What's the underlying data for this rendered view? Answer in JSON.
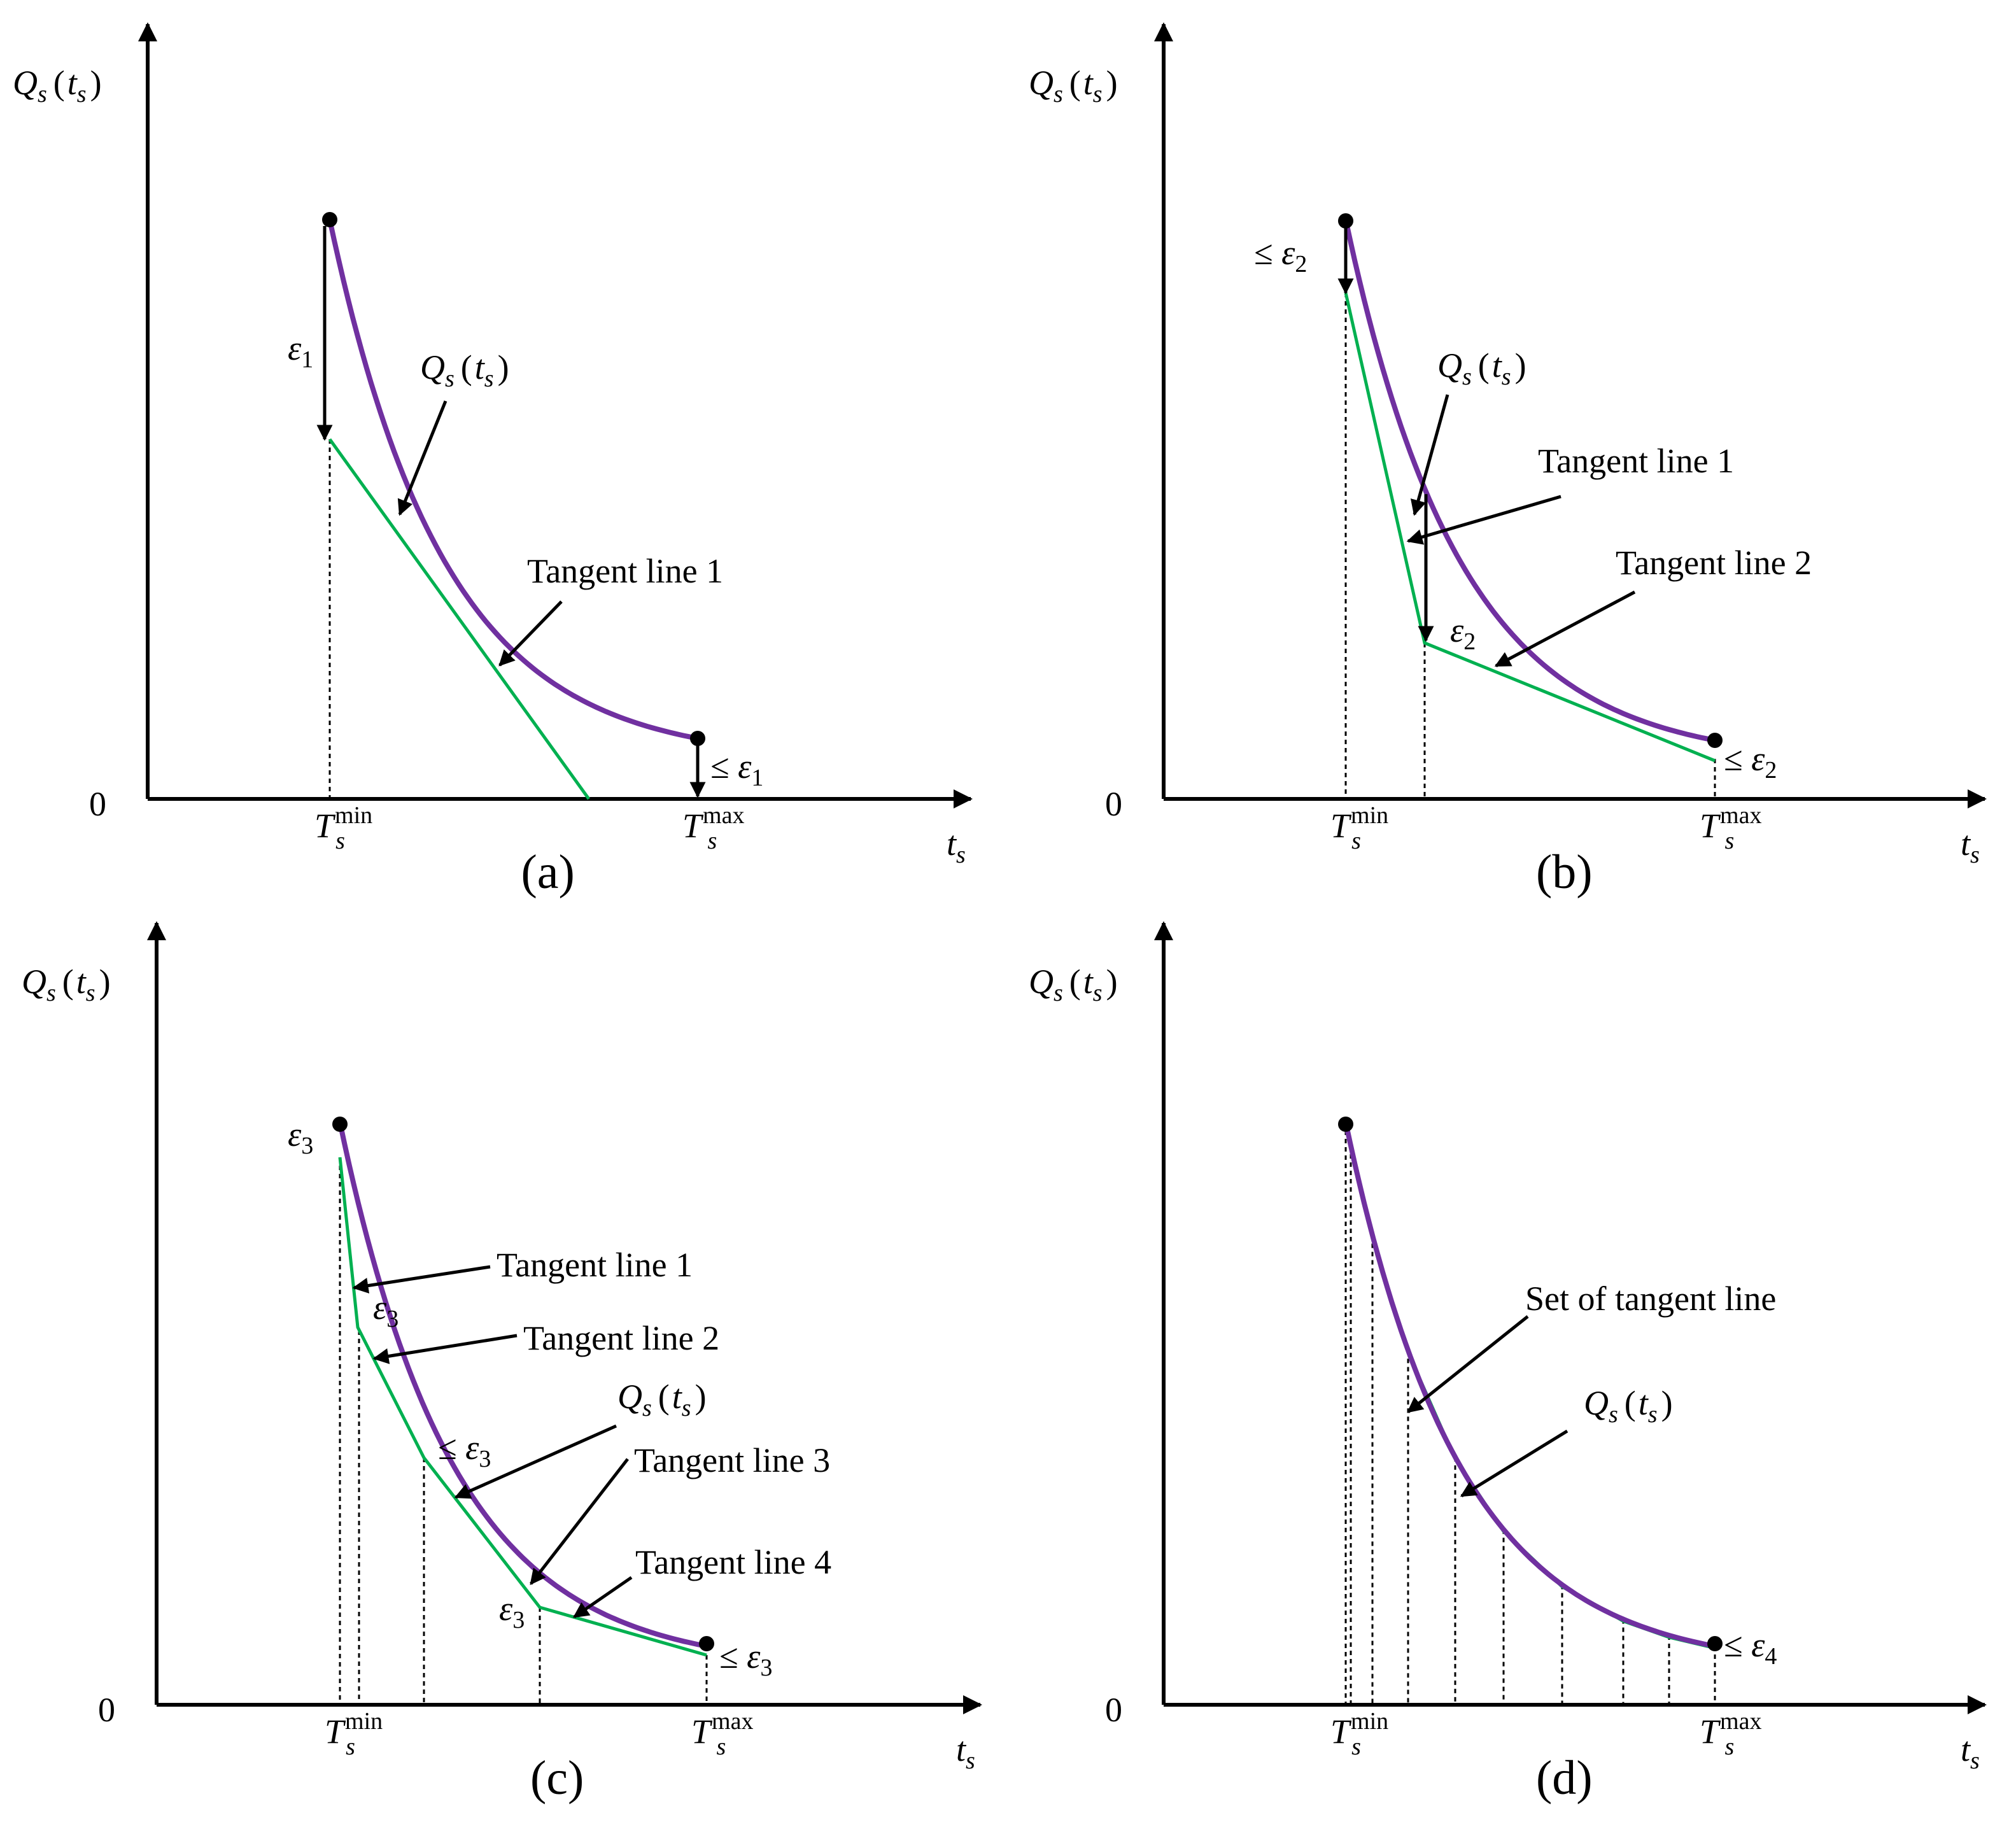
{
  "colors": {
    "curve": "#7030a0",
    "tangent": "#00b050",
    "axis": "#000000"
  },
  "panels": [
    {
      "id": "a",
      "caption": "(a)",
      "y_axis": {
        "sym": "Q",
        "sub": "s",
        "arg_sym": "t",
        "arg_sub": "s"
      },
      "x_axis": {
        "sym": "t",
        "sub": "s"
      },
      "origin": "0",
      "tmin": {
        "sym": "T",
        "sub": "s",
        "sup": "min"
      },
      "tmax": {
        "sym": "T",
        "sub": "s",
        "sup": "max"
      },
      "callouts": [
        {
          "kind": "curve",
          "sym": "Q",
          "sub": "s",
          "arg_sym": "t",
          "arg_sub": "s"
        },
        {
          "kind": "text",
          "text": "Tangent line 1"
        }
      ],
      "eps": [
        {
          "prefix": "",
          "sym": "ε",
          "sub": "1"
        },
        {
          "prefix": "≤ ",
          "sym": "ε",
          "sub": "1"
        }
      ]
    },
    {
      "id": "b",
      "caption": "(b)",
      "y_axis": {
        "sym": "Q",
        "sub": "s",
        "arg_sym": "t",
        "arg_sub": "s"
      },
      "x_axis": {
        "sym": "t",
        "sub": "s"
      },
      "origin": "0",
      "tmin": {
        "sym": "T",
        "sub": "s",
        "sup": "min"
      },
      "tmax": {
        "sym": "T",
        "sub": "s",
        "sup": "max"
      },
      "callouts": [
        {
          "kind": "curve",
          "sym": "Q",
          "sub": "s",
          "arg_sym": "t",
          "arg_sub": "s"
        },
        {
          "kind": "text",
          "text": "Tangent line 1"
        },
        {
          "kind": "text",
          "text": "Tangent line 2"
        }
      ],
      "eps": [
        {
          "prefix": "≤ ",
          "sym": "ε",
          "sub": "2"
        },
        {
          "prefix": "",
          "sym": "ε",
          "sub": "2"
        },
        {
          "prefix": "≤ ",
          "sym": "ε",
          "sub": "2"
        }
      ]
    },
    {
      "id": "c",
      "caption": "(c)",
      "y_axis": {
        "sym": "Q",
        "sub": "s",
        "arg_sym": "t",
        "arg_sub": "s"
      },
      "x_axis": {
        "sym": "t",
        "sub": "s"
      },
      "origin": "0",
      "tmin": {
        "sym": "T",
        "sub": "s",
        "sup": "min"
      },
      "tmax": {
        "sym": "T",
        "sub": "s",
        "sup": "max"
      },
      "callouts": [
        {
          "kind": "text",
          "text": "Tangent line 1"
        },
        {
          "kind": "text",
          "text": "Tangent line 2"
        },
        {
          "kind": "curve",
          "sym": "Q",
          "sub": "s",
          "arg_sym": "t",
          "arg_sub": "s"
        },
        {
          "kind": "text",
          "text": "Tangent line 3"
        },
        {
          "kind": "text",
          "text": "Tangent line 4"
        }
      ],
      "eps": [
        {
          "prefix": "",
          "sym": "ε",
          "sub": "3"
        },
        {
          "prefix": "",
          "sym": "ε",
          "sub": "3"
        },
        {
          "prefix": "≤ ",
          "sym": "ε",
          "sub": "3"
        },
        {
          "prefix": "",
          "sym": "ε",
          "sub": "3"
        },
        {
          "prefix": "≤ ",
          "sym": "ε",
          "sub": "3"
        }
      ]
    },
    {
      "id": "d",
      "caption": "(d)",
      "y_axis": {
        "sym": "Q",
        "sub": "s",
        "arg_sym": "t",
        "arg_sub": "s"
      },
      "x_axis": {
        "sym": "t",
        "sub": "s"
      },
      "origin": "0",
      "tmin": {
        "sym": "T",
        "sub": "s",
        "sup": "min"
      },
      "tmax": {
        "sym": "T",
        "sub": "s",
        "sup": "max"
      },
      "callouts": [
        {
          "kind": "text",
          "text": "Set of tangent line"
        },
        {
          "kind": "curve",
          "sym": "Q",
          "sub": "s",
          "arg_sym": "t",
          "arg_sub": "s"
        }
      ],
      "eps": [
        {
          "prefix": "≤ ",
          "sym": "ε",
          "sub": "4"
        }
      ]
    }
  ]
}
